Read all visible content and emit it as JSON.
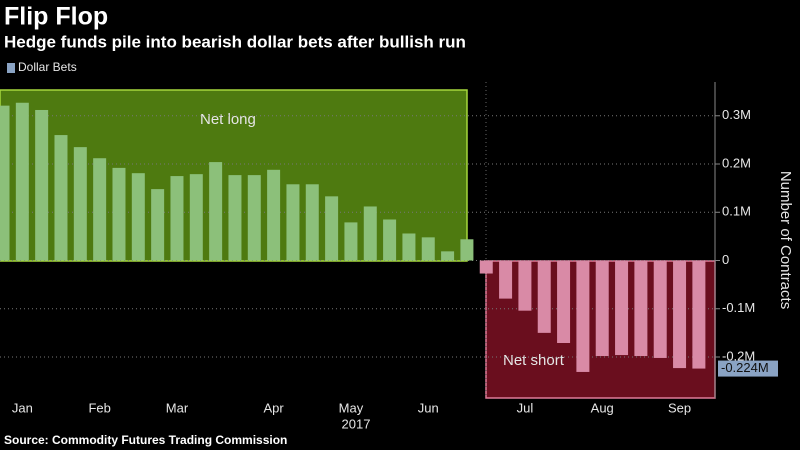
{
  "chart_data": {
    "type": "bar",
    "title": "Flip Flop",
    "subtitle": "Hedge funds pile into bearish dollar bets after bullish run",
    "source": "Source: Commodity Futures Trading Commission",
    "ylabel": "Number of Contracts",
    "xlabel": "2017",
    "annotations": [
      "Net long",
      "Net short"
    ],
    "categories": [
      null,
      "Jan",
      null,
      null,
      null,
      "Feb",
      null,
      null,
      null,
      "Mar",
      null,
      null,
      null,
      null,
      "Apr",
      null,
      null,
      null,
      "May",
      null,
      null,
      null,
      "Jun",
      null,
      null,
      null,
      null,
      "Jul",
      null,
      null,
      null,
      "Aug",
      null,
      null,
      null,
      "Sep",
      null
    ],
    "series": [
      {
        "name": "Dollar Bets",
        "color": "#8aa3c4",
        "values": [
          0.321,
          0.327,
          0.312,
          0.26,
          0.235,
          0.212,
          0.192,
          0.181,
          0.148,
          0.175,
          0.179,
          0.204,
          0.177,
          0.177,
          0.188,
          0.158,
          0.158,
          0.133,
          0.079,
          0.112,
          0.085,
          0.056,
          0.048,
          0.019,
          0.044,
          -0.027,
          -0.079,
          -0.104,
          -0.15,
          -0.171,
          -0.231,
          -0.198,
          -0.196,
          -0.198,
          -0.202,
          -0.223,
          -0.224
        ],
        "value_labels": [
          null,
          null,
          null,
          null,
          null,
          null,
          null,
          null,
          null,
          null,
          null,
          null,
          null,
          null,
          null,
          null,
          null,
          null,
          null,
          null,
          null,
          null,
          null,
          null,
          null,
          null,
          null,
          null,
          null,
          null,
          null,
          null,
          null,
          null,
          null,
          null,
          "-0.224M"
        ]
      }
    ],
    "positive_color": "#8cc07a",
    "negative_color": "#d98aa6",
    "ylim": [
      -0.285,
      0.37
    ],
    "yticks": [
      {
        "value": -0.2,
        "label": "-0.2M"
      },
      {
        "value": -0.1,
        "label": "-0.1M"
      },
      0,
      {
        "value": 0.1,
        "label": "0.1M"
      },
      {
        "value": 0.2,
        "label": "0.2M"
      },
      {
        "value": 0.3,
        "label": "0.3M"
      }
    ],
    "grid": true,
    "legend": "top-left"
  }
}
